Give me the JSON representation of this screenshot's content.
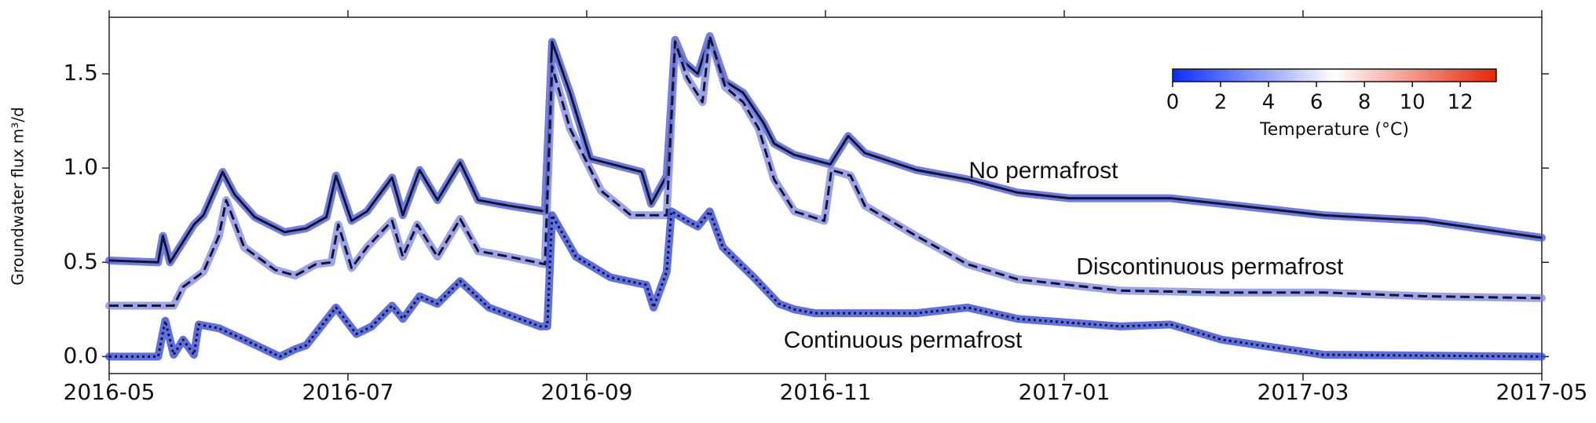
{
  "chart_data": {
    "type": "line",
    "ylabel": "Groundwater flux m³/d",
    "xlim": [
      0,
      12
    ],
    "xticks": [
      {
        "value": 0,
        "label": "2016-05"
      },
      {
        "value": 2,
        "label": "2016-07"
      },
      {
        "value": 4,
        "label": "2016-09"
      },
      {
        "value": 6,
        "label": "2016-11"
      },
      {
        "value": 8,
        "label": "2017-01"
      },
      {
        "value": 10,
        "label": "2017-03"
      },
      {
        "value": 12,
        "label": "2017-05"
      }
    ],
    "ylim": [
      -0.09,
      1.8
    ],
    "yticks": [
      {
        "value": 0,
        "label": "0.0"
      },
      0.5,
      {
        "value": 1,
        "label": "1.0"
      },
      1.5
    ],
    "line_color": "#10162e",
    "series": [
      {
        "name": "No permafrost",
        "color": "#4150d8",
        "linestyle": "solid",
        "x": [
          0,
          0.41,
          0.45,
          0.51,
          0.71,
          0.79,
          0.95,
          1.05,
          1.22,
          1.47,
          1.65,
          1.82,
          1.9,
          2.03,
          2.16,
          2.37,
          2.46,
          2.6,
          2.75,
          2.94,
          3.09,
          3.35,
          3.65,
          3.71,
          3.86,
          4.03,
          4.46,
          4.54,
          4.67,
          4.74,
          4.82,
          4.93,
          5.03,
          5.16,
          5.31,
          5.48,
          5.57,
          5.74,
          6.04,
          6.19,
          6.33,
          6.76,
          7.19,
          7.61,
          8.04,
          8.89,
          9.32,
          10.17,
          11.02,
          12
        ],
        "values": [
          0.51,
          0.5,
          0.64,
          0.5,
          0.7,
          0.75,
          0.98,
          0.86,
          0.74,
          0.66,
          0.68,
          0.74,
          0.96,
          0.72,
          0.77,
          0.95,
          0.75,
          0.99,
          0.83,
          1.03,
          0.83,
          0.8,
          0.77,
          1.67,
          1.4,
          1.05,
          0.98,
          0.81,
          0.96,
          1.68,
          1.56,
          1.5,
          1.7,
          1.46,
          1.4,
          1.24,
          1.13,
          1.07,
          1.02,
          1.17,
          1.08,
          0.99,
          0.94,
          0.87,
          0.84,
          0.84,
          0.81,
          0.75,
          0.72,
          0.63
        ]
      },
      {
        "name": "Discontinuous permafrost",
        "color": "#7c84e2",
        "linestyle": "dashed",
        "x": [
          0,
          0.54,
          0.62,
          0.79,
          0.92,
          0.98,
          1.13,
          1.39,
          1.56,
          1.73,
          1.86,
          1.92,
          2.03,
          2.16,
          2.37,
          2.46,
          2.58,
          2.75,
          2.94,
          3.09,
          3.35,
          3.65,
          3.71,
          3.86,
          4.12,
          4.37,
          4.67,
          4.74,
          4.84,
          4.97,
          5.03,
          5.16,
          5.31,
          5.44,
          5.57,
          5.74,
          5.99,
          6.05,
          6.21,
          6.33,
          6.76,
          7.19,
          7.61,
          8.47,
          9.32,
          10.17,
          11.02,
          12
        ],
        "values": [
          0.27,
          0.27,
          0.37,
          0.45,
          0.64,
          0.83,
          0.58,
          0.46,
          0.43,
          0.49,
          0.5,
          0.7,
          0.47,
          0.58,
          0.72,
          0.53,
          0.7,
          0.53,
          0.73,
          0.56,
          0.53,
          0.49,
          1.54,
          1.21,
          0.88,
          0.75,
          0.75,
          1.67,
          1.48,
          1.35,
          1.7,
          1.43,
          1.35,
          1.21,
          0.94,
          0.77,
          0.72,
          0.99,
          0.96,
          0.8,
          0.64,
          0.49,
          0.41,
          0.35,
          0.34,
          0.34,
          0.32,
          0.31
        ]
      },
      {
        "name": "Continuous permafrost",
        "color": "#2a3fd6",
        "linestyle": "dotted",
        "x": [
          0,
          0.41,
          0.47,
          0.54,
          0.62,
          0.71,
          0.75,
          0.92,
          1.13,
          1.43,
          1.56,
          1.65,
          1.9,
          2.07,
          2.2,
          2.37,
          2.46,
          2.6,
          2.75,
          2.94,
          3.18,
          3.61,
          3.67,
          3.71,
          3.91,
          4.2,
          4.5,
          4.56,
          4.67,
          4.71,
          4.84,
          4.93,
          5.03,
          5.14,
          5.4,
          5.61,
          5.74,
          5.91,
          6.76,
          7.19,
          7.61,
          8.47,
          8.89,
          9.32,
          10.17,
          12
        ],
        "values": [
          0,
          0,
          0.19,
          0.01,
          0.09,
          0.01,
          0.17,
          0.15,
          0.09,
          0,
          0.04,
          0.06,
          0.26,
          0.12,
          0.16,
          0.27,
          0.2,
          0.32,
          0.28,
          0.4,
          0.26,
          0.16,
          0.16,
          0.75,
          0.53,
          0.42,
          0.38,
          0.26,
          0.45,
          0.77,
          0.72,
          0.69,
          0.77,
          0.58,
          0.42,
          0.28,
          0.25,
          0.23,
          0.23,
          0.26,
          0.2,
          0.16,
          0.17,
          0.09,
          0.01,
          0
        ]
      }
    ],
    "colorbar": {
      "label": "Temperature (°C)",
      "lim": [
        0,
        13.5
      ],
      "ticks": [
        0,
        2,
        4,
        6,
        8,
        10,
        12
      ],
      "colors": [
        "#0a2cff",
        "#ffffff",
        "#e8250a"
      ]
    }
  }
}
